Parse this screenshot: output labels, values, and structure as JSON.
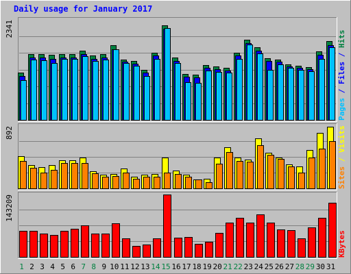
{
  "chart_data": {
    "type": "bar",
    "title": "Daily usage for January 2017",
    "categories": [
      "1",
      "2",
      "3",
      "4",
      "5",
      "6",
      "7",
      "8",
      "9",
      "10",
      "11",
      "12",
      "13",
      "14",
      "15",
      "16",
      "17",
      "18",
      "19",
      "20",
      "21",
      "22",
      "23",
      "24",
      "25",
      "26",
      "27",
      "28",
      "29",
      "30",
      "31"
    ],
    "weekend_days": [
      "1",
      "7",
      "8",
      "14",
      "15",
      "21",
      "22",
      "28",
      "29"
    ],
    "panels": [
      {
        "id": "hits-files-pages",
        "max_label": "2341",
        "ymax": 2450,
        "grid": true,
        "series": [
          {
            "name": "Hits",
            "color": "#008040",
            "values": [
              1150,
              1600,
              1600,
              1580,
              1600,
              1600,
              1690,
              1570,
              1600,
              1810,
              1470,
              1430,
              1210,
              1630,
              2300,
              1520,
              1120,
              1100,
              1330,
              1300,
              1270,
              1640,
              1950,
              1760,
              1500,
              1470,
              1350,
              1320,
              1280,
              1660,
              1910
            ]
          },
          {
            "name": "Files",
            "color": "#0000ff",
            "values": [
              1060,
              1520,
              1520,
              1480,
              1520,
              1510,
              1600,
              1490,
              1510,
              1710,
              1420,
              1360,
              1150,
              1560,
              2220,
              1440,
              1050,
              1040,
              1260,
              1240,
              1200,
              1560,
              1870,
              1680,
              1430,
              1410,
              1300,
              1270,
              1230,
              1580,
              1820
            ]
          },
          {
            "name": "Pages",
            "color": "#00c0ff",
            "values": [
              960,
              1460,
              1450,
              1390,
              1480,
              1490,
              1550,
              1440,
              1470,
              1710,
              1390,
              1310,
              1060,
              1480,
              2230,
              1390,
              920,
              900,
              1200,
              1170,
              1150,
              1490,
              1830,
              1620,
              1220,
              1350,
              1260,
              1220,
              1180,
              1480,
              1760
            ]
          }
        ],
        "right_label": [
          {
            "text": "Pages",
            "color": "#00c0ff"
          },
          {
            "text": " / ",
            "color": "#0000ff"
          },
          {
            "text": "Files",
            "color": "#0000ff"
          },
          {
            "text": " / ",
            "color": "#0000ff"
          },
          {
            "text": "Hits",
            "color": "#008040"
          }
        ]
      },
      {
        "id": "sites-visits",
        "max_label": "892",
        "ymax": 940,
        "grid": true,
        "series": [
          {
            "name": "Visits",
            "color": "#ffff00",
            "values": [
              480,
              350,
              320,
              350,
              420,
              420,
              460,
              260,
              200,
              210,
              300,
              170,
              200,
              210,
              460,
              270,
              200,
              130,
              140,
              460,
              610,
              460,
              430,
              750,
              530,
              460,
              360,
              330,
              570,
              830,
              920
            ]
          },
          {
            "name": "Sites",
            "color": "#ff8000",
            "values": [
              410,
              310,
              240,
              280,
              380,
              380,
              380,
              220,
              170,
              180,
              230,
              140,
              170,
              170,
              230,
              210,
              170,
              130,
              90,
              370,
              540,
              410,
              400,
              640,
              500,
              440,
              330,
              230,
              460,
              590,
              710
            ]
          }
        ],
        "right_label": [
          {
            "text": "Sites",
            "color": "#ff8000"
          },
          {
            "text": " / ",
            "color": "#ffff00"
          },
          {
            "text": "Visits",
            "color": "#ffff00"
          }
        ]
      },
      {
        "id": "kbytes",
        "max_label": "143209",
        "ymax": 151000,
        "grid": true,
        "series": [
          {
            "name": "KBytes",
            "color": "#ff0000",
            "values": [
              62000,
              62000,
              55000,
              53000,
              62000,
              68000,
              75000,
              55000,
              56000,
              80000,
              45000,
              26000,
              30000,
              45000,
              150000,
              46000,
              47000,
              31000,
              36000,
              57000,
              82000,
              93000,
              82000,
              101000,
              82000,
              65000,
              64000,
              45000,
              70000,
              93000,
              130000
            ]
          }
        ],
        "right_label": [
          {
            "text": "KBytes",
            "color": "#ff0000"
          }
        ]
      }
    ]
  }
}
